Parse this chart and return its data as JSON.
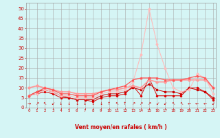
{
  "x": [
    0,
    1,
    2,
    3,
    4,
    5,
    6,
    7,
    8,
    9,
    10,
    11,
    12,
    13,
    14,
    15,
    16,
    17,
    18,
    19,
    20,
    21,
    22,
    23
  ],
  "series": [
    {
      "values": [
        6,
        7,
        8,
        7,
        5,
        5,
        4,
        4,
        3,
        5,
        6,
        6,
        7,
        11,
        6,
        15,
        6,
        6,
        6,
        6,
        10,
        10,
        8,
        4
      ],
      "color": "#dd0000",
      "lw": 0.7,
      "marker": "o",
      "ms": 1.5
    },
    {
      "values": [
        6,
        8,
        9,
        8,
        6,
        5,
        4,
        4,
        4,
        6,
        7,
        7,
        8,
        10,
        9,
        12,
        9,
        8,
        8,
        7,
        10,
        9,
        8,
        5
      ],
      "color": "#cc0000",
      "lw": 0.7,
      "marker": "s",
      "ms": 1.5
    },
    {
      "values": [
        10,
        11,
        10,
        9,
        8,
        8,
        7,
        7,
        7,
        8,
        9,
        9,
        10,
        11,
        10,
        14,
        13,
        13,
        14,
        14,
        14,
        14,
        14,
        10
      ],
      "color": "#ff9999",
      "lw": 1.2,
      "marker": "D",
      "ms": 1.8
    },
    {
      "values": [
        6,
        7,
        9,
        8,
        6,
        6,
        5,
        5,
        5,
        7,
        8,
        8,
        9,
        13,
        27,
        50,
        32,
        20,
        10,
        8,
        9,
        17,
        15,
        7
      ],
      "color": "#ffbbbb",
      "lw": 0.8,
      "marker": "o",
      "ms": 1.8
    },
    {
      "values": [
        6,
        8,
        10,
        9,
        7,
        7,
        6,
        6,
        6,
        8,
        9,
        10,
        11,
        14,
        15,
        15,
        15,
        14,
        14,
        14,
        15,
        16,
        15,
        10
      ],
      "color": "#ff5555",
      "lw": 0.9,
      "marker": "^",
      "ms": 1.8
    }
  ],
  "xlabel": "Vent moyen/en rafales ( km/h )",
  "ylabel_ticks": [
    0,
    5,
    10,
    15,
    20,
    25,
    30,
    35,
    40,
    45,
    50
  ],
  "xlim": [
    -0.3,
    23.3
  ],
  "ylim": [
    0,
    53
  ],
  "bg_color": "#d5f5f5",
  "grid_color": "#aaaaaa",
  "tick_color": "#cc0000",
  "label_color": "#cc0000",
  "wind_arrows": [
    "→",
    "↗",
    "↖",
    "↙",
    "↓",
    "↓",
    "↓",
    "↓",
    "↓",
    "↓",
    "↑",
    "↖",
    "↑",
    "↗",
    "↗",
    "↗",
    "↙",
    "↙",
    "↖",
    "↖",
    "←",
    "←",
    "←",
    "↙"
  ],
  "arrow_fontsize": 4.5,
  "num_fontsize": 4.0,
  "ytick_fontsize": 5.0,
  "xlabel_fontsize": 5.5
}
